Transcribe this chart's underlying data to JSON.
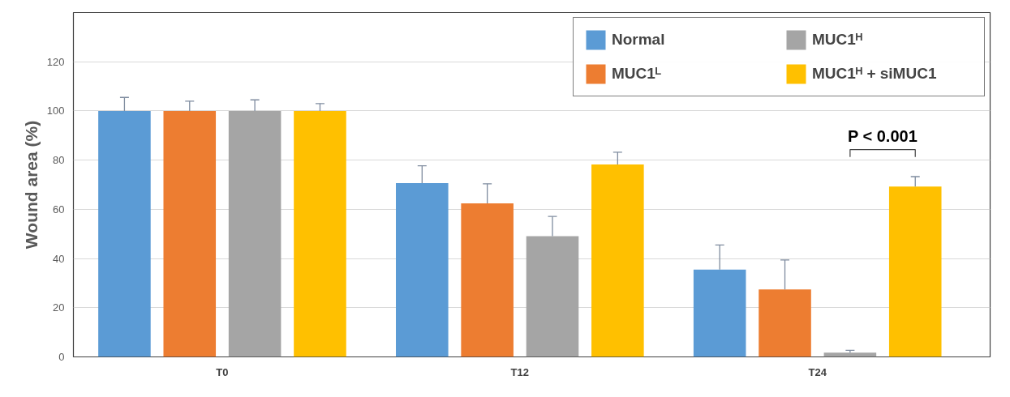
{
  "chart_data": {
    "type": "bar",
    "ylabel": "Wound area (%)",
    "categories": [
      "T0",
      "T12",
      "T24"
    ],
    "series": [
      {
        "name": "Normal",
        "color": "#5b9bd5",
        "values": [
          100,
          70.7,
          35.5
        ],
        "errors": [
          5.5,
          7,
          10
        ]
      },
      {
        "name": "MUC1ᴸ",
        "color": "#ed7d31",
        "values": [
          100,
          62.4,
          27.4
        ],
        "errors": [
          4,
          8,
          12
        ]
      },
      {
        "name": "MUC1ᴴ",
        "color": "#a5a5a5",
        "values": [
          100,
          49.1,
          1.7
        ],
        "errors": [
          4.5,
          8,
          1
        ]
      },
      {
        "name": "MUC1ᴴ + siMUC1",
        "color": "#ffc000",
        "values": [
          100,
          78.2,
          69.3
        ],
        "errors": [
          3,
          5,
          4
        ]
      }
    ],
    "ylim": [
      0,
      140
    ],
    "yticks": [
      0,
      20,
      40,
      60,
      80,
      100,
      120
    ],
    "grid": "y",
    "legend": "top right",
    "annotations": [
      "P < 0.001"
    ]
  }
}
